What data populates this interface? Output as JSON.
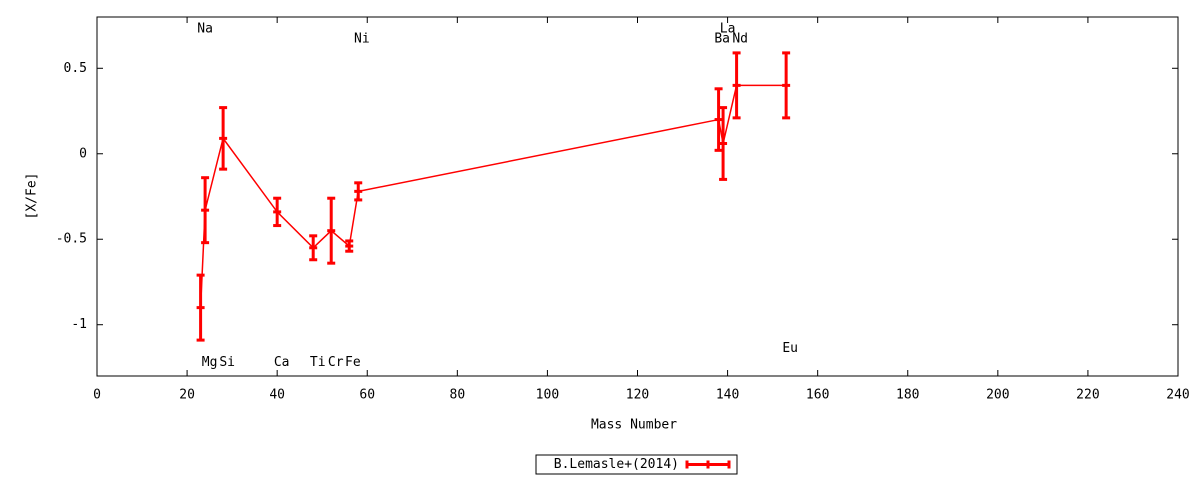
{
  "chart_data": {
    "type": "errorbar-line",
    "x_label": "Mass Number",
    "y_label": "[X/Fe]",
    "xlim": [
      0,
      240
    ],
    "ylim": [
      -1.3,
      0.8
    ],
    "xticks": [
      0,
      20,
      40,
      60,
      80,
      100,
      120,
      140,
      160,
      180,
      200,
      220,
      240
    ],
    "yticks": [
      -1,
      -0.5,
      0,
      0.5
    ],
    "legend": "bottom",
    "series": [
      {
        "name": "B.Lemasle+(2014)",
        "color": "#ff0000",
        "x": [
          23,
          24,
          28,
          40,
          48,
          52,
          56,
          58,
          138,
          139,
          142,
          153
        ],
        "values": [
          -0.9,
          -0.33,
          0.09,
          -0.34,
          -0.55,
          -0.45,
          -0.54,
          -0.22,
          0.2,
          0.06,
          0.4,
          0.4
        ],
        "errors": [
          0.19,
          0.19,
          0.18,
          0.08,
          0.07,
          0.19,
          0.03,
          0.05,
          0.18,
          0.21,
          0.19,
          0.19
        ]
      }
    ],
    "annotations": [
      {
        "text": "Na",
        "x": 24,
        "y": 0.73
      },
      {
        "text": "Mg",
        "x": 25,
        "y": -1.22
      },
      {
        "text": "Si",
        "x": 28.9,
        "y": -1.22
      },
      {
        "text": "Ca",
        "x": 41,
        "y": -1.22
      },
      {
        "text": "Ti",
        "x": 49,
        "y": -1.22
      },
      {
        "text": "Cr",
        "x": 53,
        "y": -1.22
      },
      {
        "text": "Fe",
        "x": 56.8,
        "y": -1.22
      },
      {
        "text": "Ni",
        "x": 58.8,
        "y": 0.67
      },
      {
        "text": "La",
        "x": 140,
        "y": 0.73
      },
      {
        "text": "Ba",
        "x": 138.8,
        "y": 0.67
      },
      {
        "text": "Nd",
        "x": 142.8,
        "y": 0.67
      },
      {
        "text": "Eu",
        "x": 153.9,
        "y": -1.14
      }
    ]
  }
}
